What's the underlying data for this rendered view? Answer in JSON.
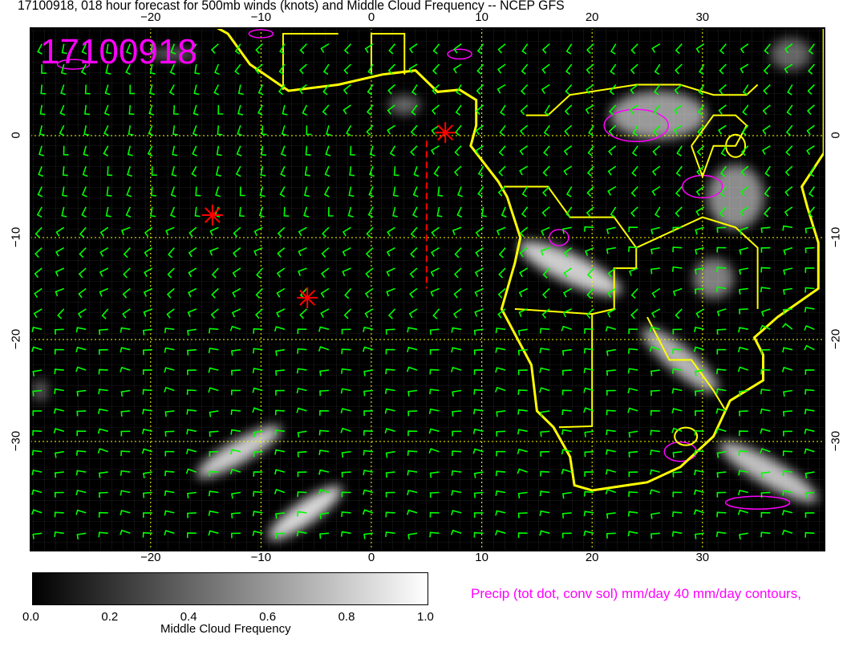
{
  "title": "17100918, 018 hour forecast for 500mb winds (knots) and Middle Cloud Frequency -- NCEP GFS",
  "date_stamp": "17100918",
  "map": {
    "lon_ticks": [
      "−20",
      "−10",
      "0",
      "10",
      "20",
      "30"
    ],
    "lat_ticks": [
      "0",
      "−10",
      "−20",
      "−30"
    ],
    "lon_range": [
      -31,
      41
    ],
    "lat_range": [
      -40.7,
      10.5
    ],
    "colors": {
      "background": "#000000",
      "coastline": "#ffff00",
      "wind_barbs": "#00ff00",
      "precip": "#ff00ff",
      "markers": "#ff0000",
      "grid": "#ffff00"
    },
    "markers": [
      {
        "lon": 6.7,
        "lat": 0.3
      },
      {
        "lon": -14.4,
        "lat": -7.8
      },
      {
        "lon": -5.8,
        "lat": -15.9
      }
    ]
  },
  "colorbar": {
    "labels": [
      "0.0",
      "0.2",
      "0.4",
      "0.6",
      "0.8",
      "1.0"
    ],
    "title": "Middle Cloud Frequency",
    "range": [
      0,
      1
    ]
  },
  "precip_legend": "Precip (tot dot, conv sol) mm/day 40 mm/day contours,"
}
